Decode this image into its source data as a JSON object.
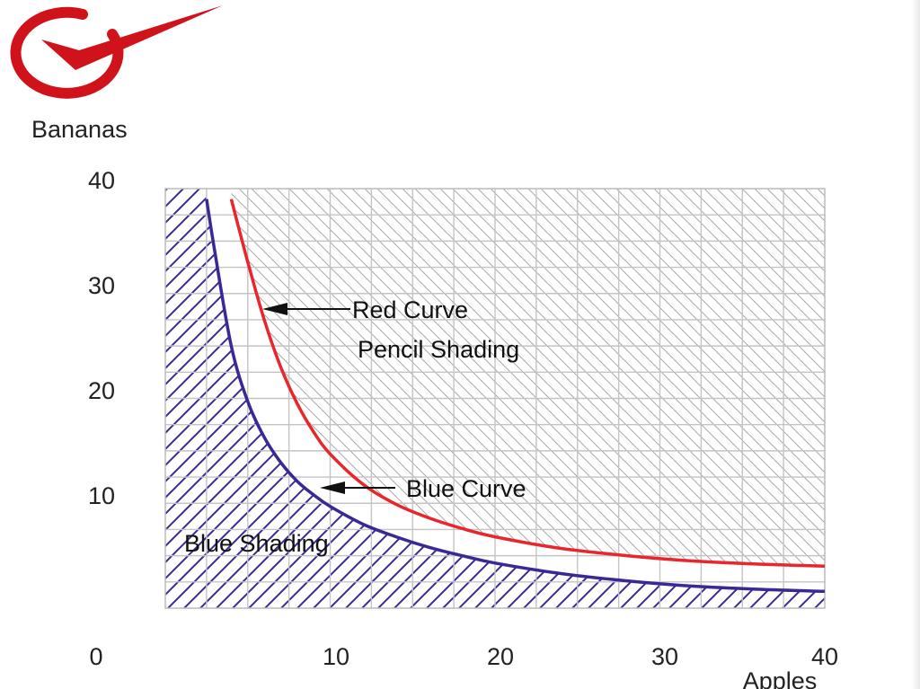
{
  "logo": {
    "name": "checkmark-logo",
    "color": "#d0121b"
  },
  "chart_data": {
    "type": "line",
    "xlabel": "Apples",
    "ylabel": "Bananas",
    "xlim": [
      0,
      40
    ],
    "ylim": [
      0,
      40
    ],
    "x_ticks": [
      "0",
      "10",
      "20",
      "30",
      "40"
    ],
    "y_ticks": [
      "40",
      "30",
      "20",
      "10"
    ],
    "grid": true,
    "series": [
      {
        "name": "Red Curve",
        "color": "#e8262c",
        "points": [
          [
            4,
            39
          ],
          [
            5,
            33
          ],
          [
            6,
            27.5
          ],
          [
            7,
            23
          ],
          [
            8,
            19.5
          ],
          [
            9,
            16.8
          ],
          [
            10,
            14.7
          ],
          [
            12,
            11.8
          ],
          [
            14,
            9.9
          ],
          [
            16,
            8.6
          ],
          [
            18,
            7.6
          ],
          [
            20,
            6.8
          ],
          [
            24,
            5.7
          ],
          [
            28,
            5
          ],
          [
            32,
            4.5
          ],
          [
            36,
            4.2
          ],
          [
            40,
            4
          ]
        ]
      },
      {
        "name": "Blue Curve",
        "color": "#3a2896",
        "points": [
          [
            2.5,
            39
          ],
          [
            3,
            34
          ],
          [
            4,
            25
          ],
          [
            5,
            19.7
          ],
          [
            6,
            16.3
          ],
          [
            7,
            13.9
          ],
          [
            8,
            12.1
          ],
          [
            9,
            10.8
          ],
          [
            10,
            9.7
          ],
          [
            12,
            8
          ],
          [
            14,
            6.8
          ],
          [
            16,
            5.8
          ],
          [
            18,
            5
          ],
          [
            20,
            4.3
          ],
          [
            24,
            3.3
          ],
          [
            28,
            2.6
          ],
          [
            32,
            2.1
          ],
          [
            36,
            1.8
          ],
          [
            40,
            1.6
          ]
        ]
      }
    ],
    "annotations": {
      "red_curve": "Red Curve",
      "pencil_shading": "Pencil Shading",
      "blue_curve": "Blue Curve",
      "blue_shading": "Blue Shading"
    }
  }
}
